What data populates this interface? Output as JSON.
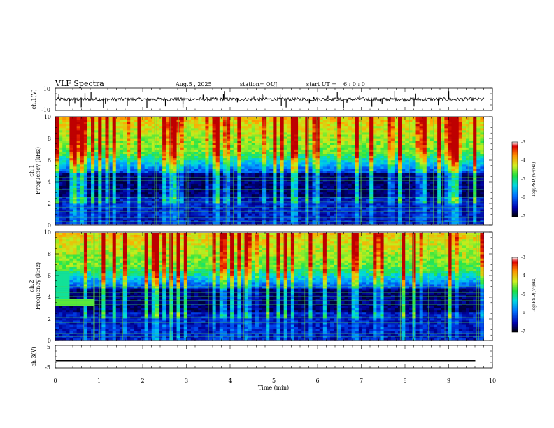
{
  "header": {
    "title": "VLF Spectra",
    "date": "Aug.5 , 2025",
    "station": "station= OUJ",
    "start_label": "start  UT =",
    "start_time": "6 : 0 : 0"
  },
  "colors": {
    "frame": "#000000",
    "trace": "#000000",
    "colormap": [
      "#000060",
      "#0000c8",
      "#0090ff",
      "#00e0d0",
      "#20e060",
      "#c0f020",
      "#ffa000",
      "#e00000"
    ]
  },
  "chart_data": [
    {
      "type": "line",
      "id": "ch1-waveform",
      "ylabel": "ch.1(V)",
      "ylim": [
        -10,
        10
      ],
      "yticks": [
        "10",
        "-10"
      ],
      "baseline": 0,
      "xlim": [
        0,
        10
      ]
    },
    {
      "type": "heatmap",
      "id": "ch1-spectrogram",
      "ylabel": "ch.1\nFrequency (kHz)",
      "ylim": [
        0,
        10
      ],
      "yticks": [
        "0",
        "2",
        "4",
        "6",
        "8",
        "10"
      ],
      "xlim": [
        0,
        9.8
      ],
      "colorbar": {
        "range": [
          -7,
          -3
        ],
        "ticks": [
          "-3",
          "-4",
          "-5",
          "-6",
          "-7"
        ],
        "label": "log(PSD)(V²/Hz)"
      }
    },
    {
      "type": "heatmap",
      "id": "ch2-spectrogram",
      "ylabel": "ch.2\nFrequency (kHz)",
      "ylim": [
        0,
        10
      ],
      "yticks": [
        "0",
        "2",
        "4",
        "6",
        "8",
        "10"
      ],
      "xlim": [
        0,
        9.8
      ],
      "colorbar": {
        "range": [
          -7,
          -3
        ],
        "ticks": [
          "-3",
          "-4",
          "-5",
          "-6",
          "-7"
        ],
        "label": "log(PSD)(V²/Hz)"
      }
    },
    {
      "type": "line",
      "id": "ch3-waveform",
      "ylabel": "ch.3(V)",
      "ylim": [
        -5,
        5
      ],
      "yticks": [
        "5",
        "-5"
      ],
      "baseline": -1.8,
      "xlim": [
        0,
        9.8
      ]
    }
  ],
  "xaxis": {
    "label": "Time (min)",
    "ticks": [
      "0",
      "1",
      "2",
      "3",
      "4",
      "5",
      "6",
      "7",
      "8",
      "9",
      "10"
    ],
    "range": [
      0,
      10
    ]
  }
}
